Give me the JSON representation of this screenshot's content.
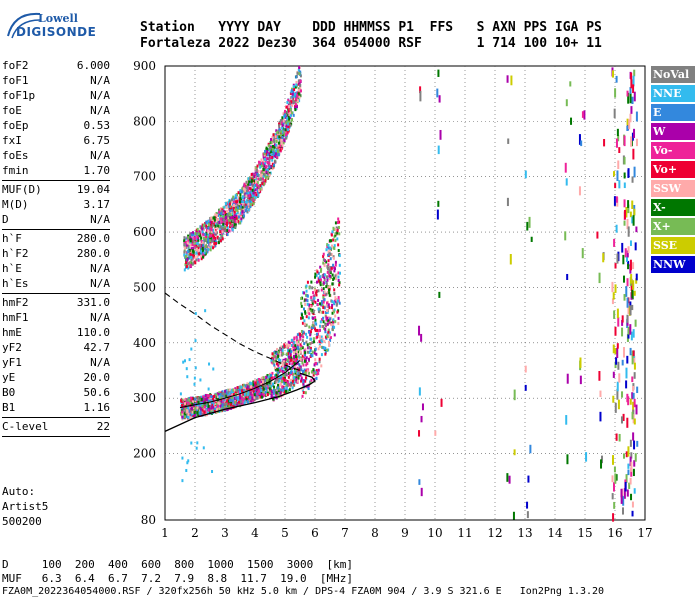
{
  "logo": {
    "line1": "Lowell",
    "line2": "DIGISONDE"
  },
  "header": {
    "labels": [
      "Station",
      "YYYY",
      "DAY",
      "DDD",
      "HHMMSS",
      "P1",
      "FFS",
      "S",
      "AXN",
      "PPS",
      "IGA",
      "PS"
    ],
    "values": [
      "Fortaleza",
      "2022",
      "Dez30",
      "364",
      "054000",
      "RSF",
      "",
      "1",
      "714",
      "100",
      "10+",
      "11"
    ]
  },
  "params": [
    [
      {
        "key": "foF2",
        "value": "6.000"
      },
      {
        "key": "foF1",
        "value": "N/A"
      },
      {
        "key": "foF1p",
        "value": "N/A"
      },
      {
        "key": "foE",
        "value": "N/A"
      },
      {
        "key": "foEp",
        "value": "0.53"
      },
      {
        "key": "fxI",
        "value": "6.75"
      },
      {
        "key": "foEs",
        "value": "N/A"
      },
      {
        "key": "fmin",
        "value": "1.70"
      }
    ],
    [
      {
        "key": "MUF(D)",
        "value": "19.04"
      },
      {
        "key": "M(D)",
        "value": "3.17"
      },
      {
        "key": "D",
        "value": "N/A"
      }
    ],
    [
      {
        "key": "h`F",
        "value": "280.0"
      },
      {
        "key": "h`F2",
        "value": "280.0"
      },
      {
        "key": "h`E",
        "value": "N/A"
      },
      {
        "key": "h`Es",
        "value": "N/A"
      }
    ],
    [
      {
        "key": "hmF2",
        "value": "331.0"
      },
      {
        "key": "hmF1",
        "value": "N/A"
      },
      {
        "key": "hmE",
        "value": "110.0"
      },
      {
        "key": "yF2",
        "value": "42.7"
      },
      {
        "key": "yF1",
        "value": "N/A"
      },
      {
        "key": "yE",
        "value": "20.0"
      },
      {
        "key": "B0",
        "value": "50.6"
      },
      {
        "key": "B1",
        "value": "1.16"
      }
    ],
    [
      {
        "key": "C-level",
        "value": "22"
      }
    ]
  ],
  "auto": {
    "line1": "Auto:",
    "line2": "Artist5",
    "line3": "500200"
  },
  "legend": [
    {
      "label": "NoVal",
      "color": "#808080"
    },
    {
      "label": "NNE",
      "color": "#33bbee"
    },
    {
      "label": "E",
      "color": "#3388dd"
    },
    {
      "label": "W",
      "color": "#aa00aa"
    },
    {
      "label": "Vo-",
      "color": "#ee2299"
    },
    {
      "label": "Vo+",
      "color": "#ee0033"
    },
    {
      "label": "SSW",
      "color": "#ffaaaa"
    },
    {
      "label": "X-",
      "color": "#007700"
    },
    {
      "label": "X+",
      "color": "#77bb55"
    },
    {
      "label": "SSE",
      "color": "#cccc00"
    },
    {
      "label": "NNW",
      "color": "#0000cc"
    }
  ],
  "footer": {
    "row1_label": "D",
    "row1_values": "100  200  400  600  800  1000  1500  3000  [km]",
    "row2_label": "MUF",
    "row2_values": "6.3  6.4  6.7  7.2  7.9  8.8  11.7  19.0  [MHz]",
    "fileline": "FZA0M_2022364054000.RSF / 320fx256h 50 kHz 5.0 km / DPS-4 FZA0M 904 / 3.9 S 321.6 E   Ion2Png 1.3.20"
  },
  "chart_data": {
    "type": "scatter",
    "xlim": [
      1,
      17
    ],
    "ylim": [
      80,
      900
    ],
    "x_ticks": [
      1,
      2,
      3,
      4,
      5,
      6,
      7,
      8,
      9,
      10,
      11,
      12,
      13,
      14,
      15,
      16,
      17
    ],
    "y_ticks": [
      80,
      200,
      300,
      400,
      500,
      600,
      700,
      800,
      900
    ],
    "grid": true,
    "legend_position": "right",
    "profile_curve": {
      "freq": [
        1.0,
        2.0,
        3.0,
        4.0,
        4.8,
        5.4,
        5.8,
        6.0,
        5.9,
        5.5
      ],
      "height": [
        240,
        265,
        280,
        292,
        303,
        315,
        324,
        331,
        338,
        345
      ]
    },
    "extrapolated_profile": {
      "freq": [
        1.0,
        1.5,
        2.0,
        2.5,
        3.0,
        3.5,
        4.0,
        4.5,
        5.0,
        5.5
      ],
      "height": [
        490,
        470,
        452,
        432,
        415,
        398,
        384,
        372,
        360,
        350
      ]
    },
    "trace_O_first_hop": {
      "freq": [
        1.5,
        2.0,
        2.5,
        3.0,
        3.5,
        4.0,
        4.5,
        5.0,
        5.5,
        6.0,
        6.2,
        6.5,
        6.8
      ],
      "height": [
        275,
        280,
        285,
        292,
        300,
        310,
        322,
        338,
        360,
        390,
        420,
        460,
        500
      ]
    },
    "trace_second_hop": {
      "freq": [
        1.5,
        2.0,
        2.5,
        3.0,
        3.5,
        4.0,
        4.5,
        5.0,
        5.5
      ],
      "height": [
        560,
        575,
        600,
        625,
        650,
        690,
        740,
        800,
        880
      ]
    }
  }
}
